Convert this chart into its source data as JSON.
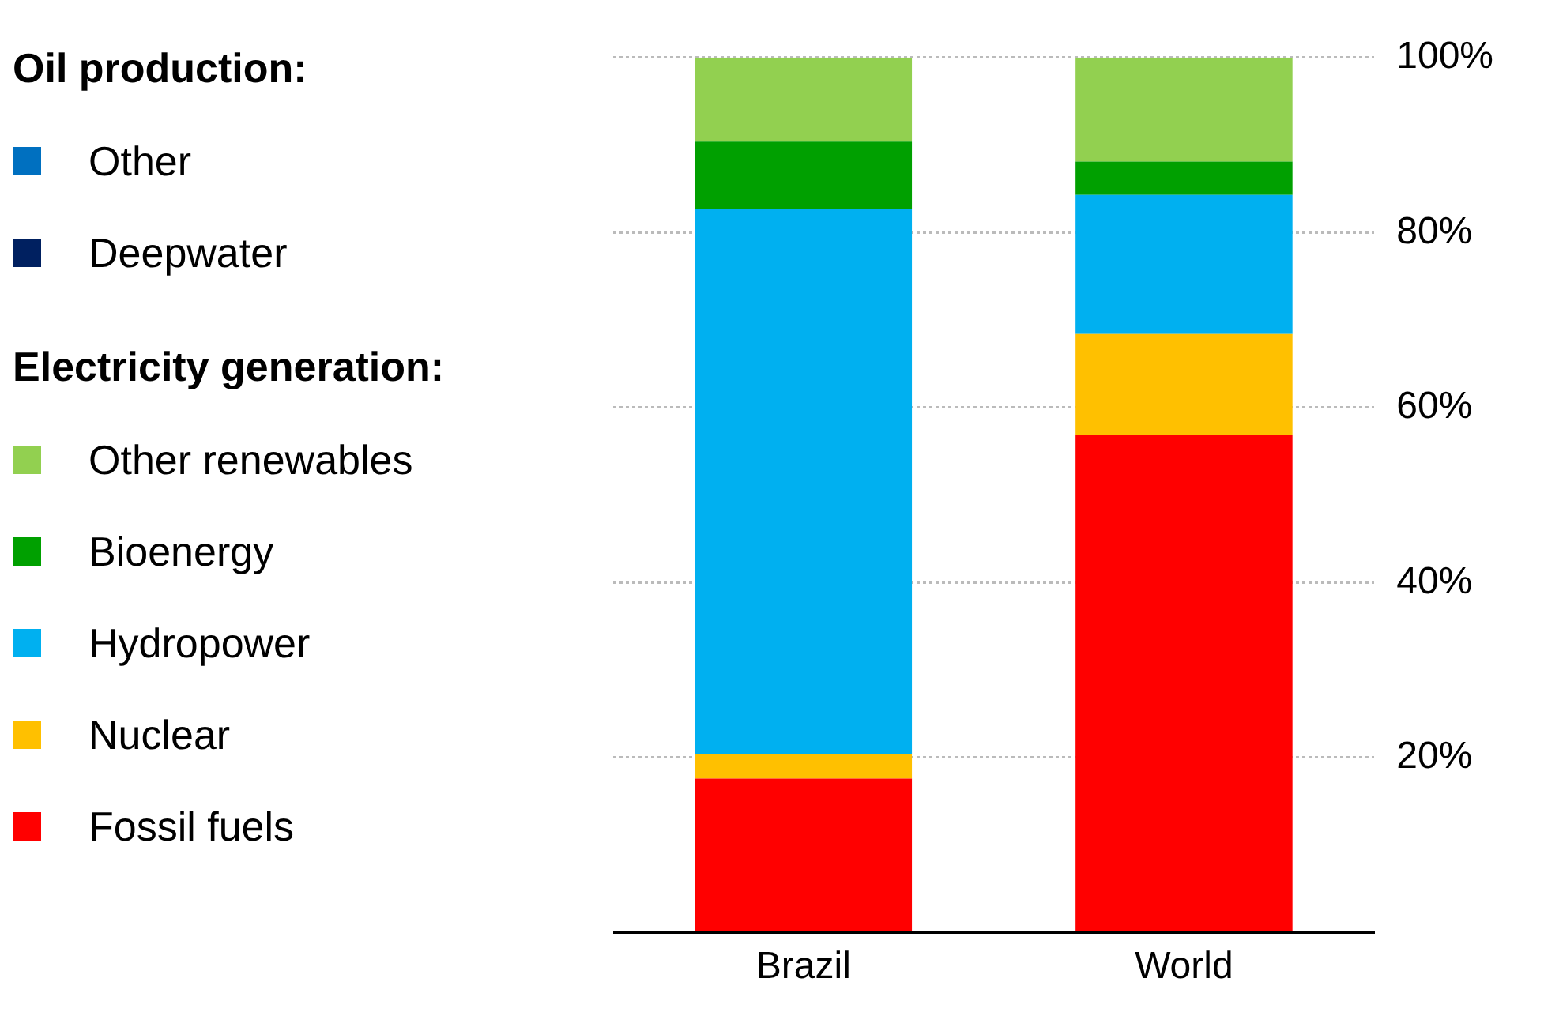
{
  "chart_data": {
    "type": "bar",
    "stacked": true,
    "categories": [
      "Brazil",
      "World"
    ],
    "series": [
      {
        "name": "Deepwater",
        "color": "#002060",
        "values": [
          null,
          null
        ]
      },
      {
        "name": "Other",
        "color": "#0070c0",
        "values": [
          null,
          null
        ]
      },
      {
        "name": "Fossil fuels",
        "color": "#ff0000",
        "values": [
          17.6,
          56.9
        ]
      },
      {
        "name": "Nuclear",
        "color": "#ffc000",
        "values": [
          2.8,
          11.5
        ]
      },
      {
        "name": "Hydropower",
        "color": "#00b0f0",
        "values": [
          62.3,
          15.9
        ]
      },
      {
        "name": "Bioenergy",
        "color": "#00a000",
        "values": [
          7.7,
          3.8
        ]
      },
      {
        "name": "Other renewables",
        "color": "#92d050",
        "values": [
          9.6,
          11.9
        ]
      }
    ],
    "annotations": [
      "Oil production:",
      "Electricity generation:"
    ],
    "ylim": [
      0,
      100
    ],
    "yticks": [
      {
        "value": 0,
        "label": null
      },
      {
        "value": 20,
        "label": "20%"
      },
      {
        "value": 40,
        "label": "40%"
      },
      {
        "value": 60,
        "label": "60%"
      },
      {
        "value": 80,
        "label": "80%"
      },
      {
        "value": 100,
        "label": "100%"
      }
    ],
    "grid": "y",
    "legend": "left"
  }
}
